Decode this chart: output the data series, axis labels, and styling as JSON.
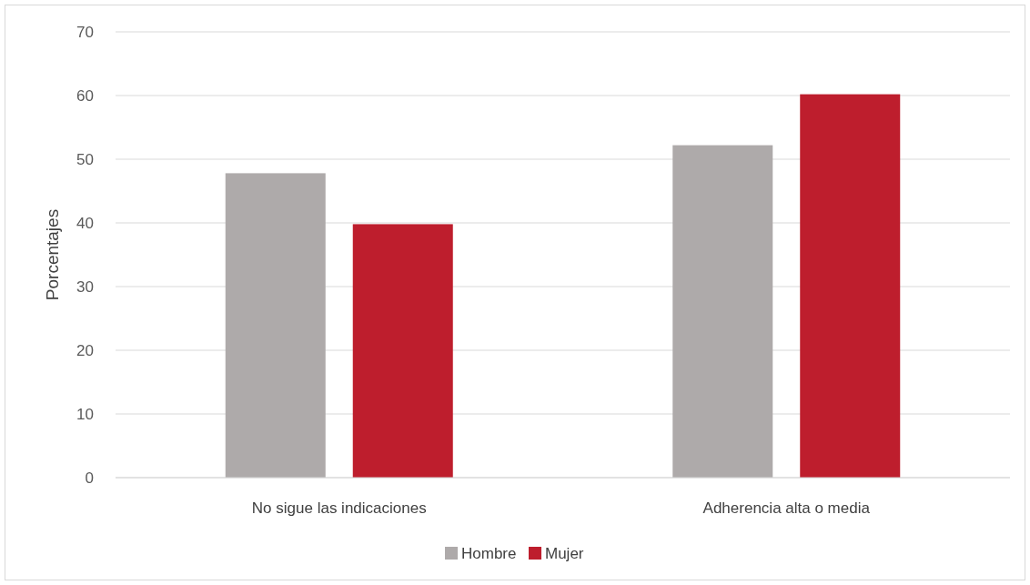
{
  "chart_data": {
    "type": "bar",
    "ylabel": "Porcentajes",
    "categories": [
      "No sigue las indicaciones",
      "Adherencia alta o media"
    ],
    "series": [
      {
        "name": "Hombre",
        "color": "#aeaaaa",
        "values": [
          47.8,
          52.2
        ]
      },
      {
        "name": "Mujer",
        "color": "#be1e2d",
        "values": [
          39.8,
          60.2
        ]
      }
    ],
    "ylim": [
      0,
      70
    ],
    "yticks": [
      0,
      10,
      20,
      30,
      40,
      50,
      60,
      70
    ],
    "grid": "y",
    "legend": "bottom"
  }
}
